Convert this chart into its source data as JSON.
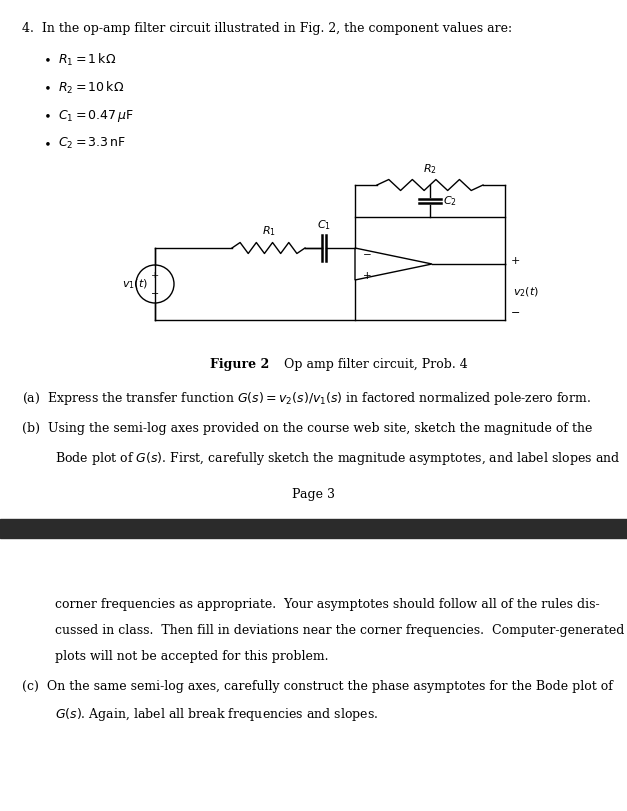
{
  "bg_color": "#ffffff",
  "dark_bar_color": "#2b2b2b",
  "page_width": 6.27,
  "page_height": 8.11,
  "title_line": "4.  In the op-amp filter circuit illustrated in Fig. 2, the component values are:",
  "bullet1": "$R_1 = 1\\,\\mathrm{k}\\Omega$",
  "bullet2": "$R_2 = 10\\,\\mathrm{k}\\Omega$",
  "bullet3": "$C_1 = 0.47\\,\\mu\\mathrm{F}$",
  "bullet4": "$C_2 = 3.3\\,\\mathrm{nF}$",
  "fig_caption_bold": "Figure 2",
  "fig_caption_normal": "   Op amp filter circuit, Prob. 4",
  "part_a": "(a)  Express the transfer function $G(s) = v_2(s)/v_1(s)$ in factored normalized pole-zero form.",
  "part_b_line1": "(b)  Using the semi-log axes provided on the course web site, sketch the magnitude of the",
  "part_b_line2": "      Bode plot of $G(s)$. First, carefully sketch the magnitude asymptotes, and label slopes and",
  "page_label": "Page 3",
  "part_b_cont1": "corner frequencies as appropriate.  Your asymptotes should follow all of the rules dis-",
  "part_b_cont2": "cussed in class.  Then fill in deviations near the corner frequencies.  Computer-generated",
  "part_b_cont3": "plots will not be accepted for this problem.",
  "part_c_line1": "(c)  On the same semi-log axes, carefully construct the phase asymptotes for the Bode plot of",
  "part_c_line2": "      $G(s)$. Again, label all break frequencies and slopes."
}
